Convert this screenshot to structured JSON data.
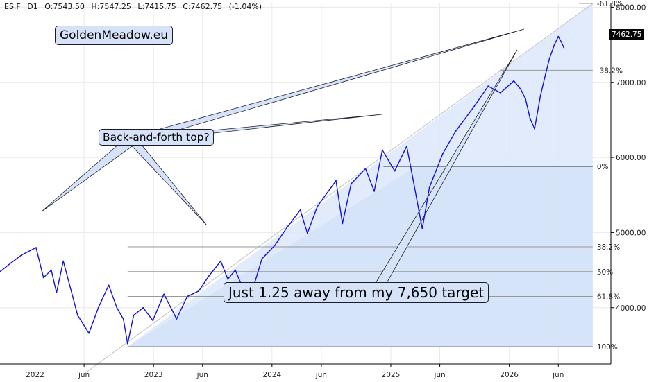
{
  "header": {
    "symbol": "ES.F",
    "timeframe": "D1",
    "open": "O:7543.50",
    "high": "H:7547.25",
    "low": "L:7415.75",
    "close": "C:7462.75",
    "change": "(-1.04%)"
  },
  "brand": "GoldenMeadow.eu",
  "annotations": {
    "callout_top": "Back-and-forth top?",
    "callout_target": "Just 1.25 away from my 7,650 target"
  },
  "price_tag": "7462.75",
  "colors": {
    "price_line": "#1010e0",
    "fill": "#dce8fa",
    "callout_bg": "#d6e2f7",
    "grid": "#e8e8e8"
  },
  "chart_data": {
    "type": "line",
    "x": [
      "2021-09-15",
      "2021-10-20",
      "2021-11-20",
      "2022-01-04",
      "2022-01-27",
      "2022-02-20",
      "2022-03-08",
      "2022-03-29",
      "2022-05-12",
      "2022-06-16",
      "2022-07-15",
      "2022-08-16",
      "2022-09-10",
      "2022-09-30",
      "2022-10-13",
      "2022-11-01",
      "2022-11-30",
      "2022-12-30",
      "2023-02-02",
      "2023-03-13",
      "2023-04-15",
      "2023-05-20",
      "2023-06-20",
      "2023-07-27",
      "2023-08-18",
      "2023-09-10",
      "2023-10-04",
      "2023-10-27",
      "2023-12-01",
      "2024-01-10",
      "2024-02-15",
      "2024-03-28",
      "2024-04-19",
      "2024-05-20",
      "2024-07-16",
      "2024-08-05",
      "2024-09-01",
      "2024-10-15",
      "2024-11-11",
      "2024-12-06",
      "2025-01-13",
      "2025-02-19",
      "2025-03-13",
      "2025-04-08",
      "2025-04-30",
      "2025-06-10",
      "2025-07-20",
      "2025-09-15",
      "2025-10-28",
      "2025-12-05",
      "2026-01-15",
      "2026-02-05",
      "2026-02-20",
      "2026-03-06",
      "2026-03-20",
      "2026-04-07",
      "2026-04-20",
      "2026-05-05",
      "2026-05-20",
      "2026-06-01",
      "2026-06-10",
      "2026-06-18"
    ],
    "y": [
      4480,
      4600,
      4700,
      4800,
      4400,
      4500,
      4200,
      4620,
      3900,
      3660,
      4000,
      4300,
      4000,
      3850,
      3520,
      3900,
      4000,
      3830,
      4180,
      3850,
      4150,
      4220,
      4420,
      4620,
      4380,
      4500,
      4250,
      4150,
      4650,
      4830,
      5060,
      5300,
      4990,
      5350,
      5690,
      5120,
      5650,
      5850,
      5550,
      6100,
      5820,
      6150,
      5650,
      5050,
      5600,
      6050,
      6350,
      6680,
      6950,
      6860,
      7020,
      6910,
      6780,
      6520,
      6380,
      6820,
      7060,
      7320,
      7500,
      7610,
      7540,
      7462.75
    ],
    "title": "",
    "ylim": [
      3250,
      8050
    ],
    "xlim": [
      "2021-09-15",
      "2026-11-10"
    ],
    "y_ticks": [
      4000,
      5000,
      6000,
      7000,
      8000
    ],
    "y_tick_labels": [
      "4000.00",
      "5000.00",
      "6000.00",
      "7000.00",
      "8000.00"
    ],
    "x_tick_labels": [
      {
        "label": "2022",
        "date": "2022-01-01"
      },
      {
        "label": "jun",
        "date": "2022-06-01"
      },
      {
        "label": "2023",
        "date": "2023-01-01"
      },
      {
        "label": "jun",
        "date": "2023-06-01"
      },
      {
        "label": "2024",
        "date": "2024-01-01"
      },
      {
        "label": "jun",
        "date": "2024-06-01"
      },
      {
        "label": "2025",
        "date": "2025-01-01"
      },
      {
        "label": "jun",
        "date": "2025-06-01"
      },
      {
        "label": "2026",
        "date": "2026-01-01"
      },
      {
        "label": "jun",
        "date": "2026-06-01"
      }
    ],
    "fib_levels": [
      {
        "label": "-61.8%",
        "price": 8050
      },
      {
        "label": "-38.2%",
        "price": 7160
      },
      {
        "label": "0%",
        "price": 5880
      },
      {
        "label": "38.2%",
        "price": 4810
      },
      {
        "label": "50%",
        "price": 4480
      },
      {
        "label": "61.8%",
        "price": 4150
      },
      {
        "label": "100%",
        "price": 3480
      }
    ],
    "fib_start_date": "2022-10-13",
    "fib_end_date": "2026-09-15",
    "grid": true,
    "legend": "none"
  }
}
